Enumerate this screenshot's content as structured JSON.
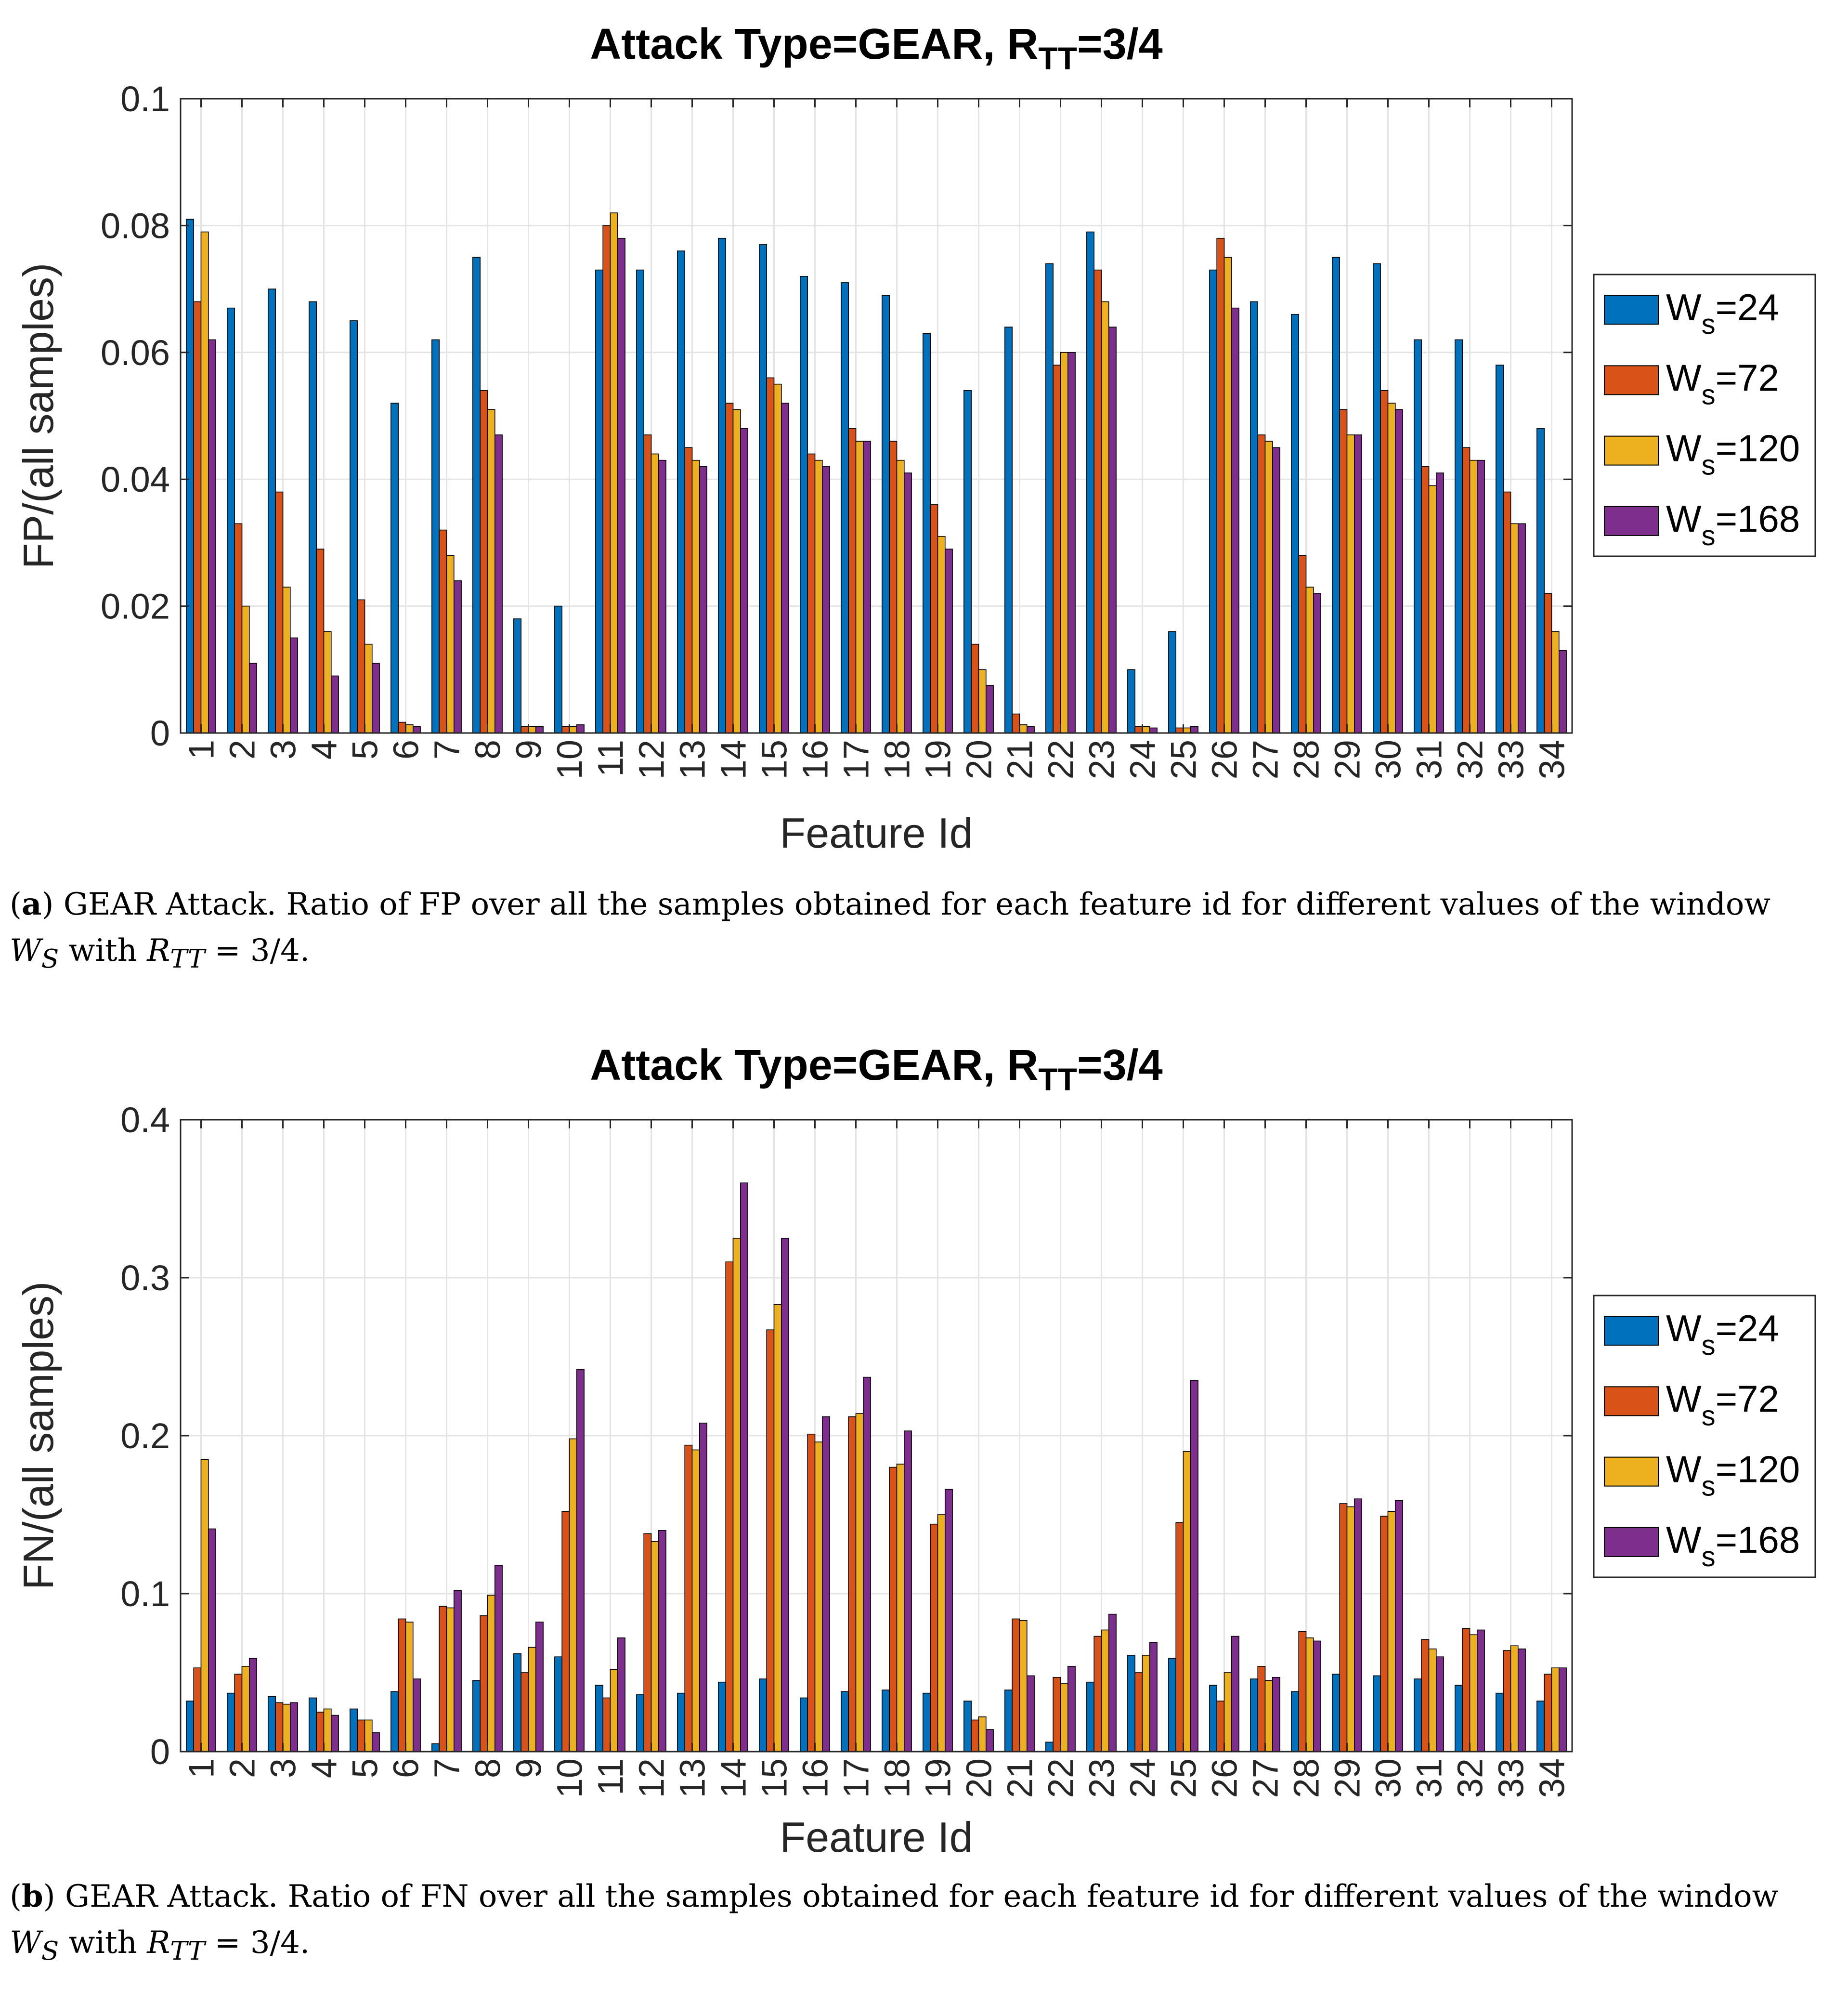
{
  "colors": {
    "series": [
      "#0072BD",
      "#D95319",
      "#EDB120",
      "#7E2F8E"
    ],
    "grid": "#e4e4e4",
    "axis": "#262626",
    "bar_edge": "#000000"
  },
  "legend_labels": [
    {
      "base": "W",
      "sub": "s",
      "rest": "=24"
    },
    {
      "base": "W",
      "sub": "s",
      "rest": "=72"
    },
    {
      "base": "W",
      "sub": "s",
      "rest": "=120"
    },
    {
      "base": "W",
      "sub": "s",
      "rest": "=168"
    }
  ],
  "chart_data": [
    {
      "type": "bar",
      "title_main": "Attack Type=GEAR, R",
      "title_sub": "TT",
      "title_end": "=3/4",
      "xlabel": "Feature Id",
      "ylabel": "FP/(all samples)",
      "ylim": [
        0,
        0.1
      ],
      "yticks": [
        0,
        0.02,
        0.04,
        0.06,
        0.08,
        0.1
      ],
      "ytick_labels": [
        "0",
        "0.02",
        "0.04",
        "0.06",
        "0.08",
        "0.1"
      ],
      "grid": true,
      "legend_position": "right",
      "categories": [
        "1",
        "2",
        "3",
        "4",
        "5",
        "6",
        "7",
        "8",
        "9",
        "10",
        "11",
        "12",
        "13",
        "14",
        "15",
        "16",
        "17",
        "18",
        "19",
        "20",
        "21",
        "22",
        "23",
        "24",
        "25",
        "26",
        "27",
        "28",
        "29",
        "30",
        "31",
        "32",
        "33",
        "34"
      ],
      "series": [
        {
          "name": "Ws=24",
          "values": [
            0.081,
            0.067,
            0.07,
            0.068,
            0.065,
            0.052,
            0.062,
            0.075,
            0.018,
            0.02,
            0.073,
            0.073,
            0.076,
            0.078,
            0.077,
            0.072,
            0.071,
            0.069,
            0.063,
            0.054,
            0.064,
            0.074,
            0.079,
            0.01,
            0.016,
            0.073,
            0.068,
            0.066,
            0.075,
            0.074,
            0.062,
            0.062,
            0.058,
            0.048
          ]
        },
        {
          "name": "Ws=72",
          "values": [
            0.068,
            0.033,
            0.038,
            0.029,
            0.021,
            0.0017,
            0.032,
            0.054,
            0.001,
            0.001,
            0.08,
            0.047,
            0.045,
            0.052,
            0.056,
            0.044,
            0.048,
            0.046,
            0.036,
            0.014,
            0.003,
            0.058,
            0.073,
            0.001,
            0.0008,
            0.078,
            0.047,
            0.028,
            0.051,
            0.054,
            0.042,
            0.045,
            0.038,
            0.022
          ]
        },
        {
          "name": "Ws=120",
          "values": [
            0.079,
            0.02,
            0.023,
            0.016,
            0.014,
            0.0013,
            0.028,
            0.051,
            0.001,
            0.001,
            0.082,
            0.044,
            0.043,
            0.051,
            0.055,
            0.043,
            0.046,
            0.043,
            0.031,
            0.01,
            0.0013,
            0.06,
            0.068,
            0.001,
            0.0008,
            0.075,
            0.046,
            0.023,
            0.047,
            0.052,
            0.039,
            0.043,
            0.033,
            0.016
          ]
        },
        {
          "name": "Ws=168",
          "values": [
            0.062,
            0.011,
            0.015,
            0.009,
            0.011,
            0.001,
            0.024,
            0.047,
            0.001,
            0.0013,
            0.078,
            0.043,
            0.042,
            0.048,
            0.052,
            0.042,
            0.046,
            0.041,
            0.029,
            0.0075,
            0.001,
            0.06,
            0.064,
            0.0008,
            0.001,
            0.067,
            0.045,
            0.022,
            0.047,
            0.051,
            0.041,
            0.043,
            0.033,
            0.013
          ]
        }
      ]
    },
    {
      "type": "bar",
      "title_main": "Attack Type=GEAR, R",
      "title_sub": "TT",
      "title_end": "=3/4",
      "xlabel": "Feature Id",
      "ylabel": "FN/(all samples)",
      "ylim": [
        0,
        0.4
      ],
      "yticks": [
        0,
        0.1,
        0.2,
        0.3,
        0.4
      ],
      "ytick_labels": [
        "0",
        "0.1",
        "0.2",
        "0.3",
        "0.4"
      ],
      "grid": true,
      "legend_position": "right",
      "categories": [
        "1",
        "2",
        "3",
        "4",
        "5",
        "6",
        "7",
        "8",
        "9",
        "10",
        "11",
        "12",
        "13",
        "14",
        "15",
        "16",
        "17",
        "18",
        "19",
        "20",
        "21",
        "22",
        "23",
        "24",
        "25",
        "26",
        "27",
        "28",
        "29",
        "30",
        "31",
        "32",
        "33",
        "34"
      ],
      "series": [
        {
          "name": "Ws=24",
          "values": [
            0.032,
            0.037,
            0.035,
            0.034,
            0.027,
            0.038,
            0.005,
            0.045,
            0.062,
            0.06,
            0.042,
            0.036,
            0.037,
            0.044,
            0.046,
            0.034,
            0.038,
            0.039,
            0.037,
            0.032,
            0.039,
            0.006,
            0.044,
            0.061,
            0.059,
            0.042,
            0.046,
            0.038,
            0.049,
            0.048,
            0.046,
            0.042,
            0.037,
            0.032
          ]
        },
        {
          "name": "Ws=72",
          "values": [
            0.053,
            0.049,
            0.031,
            0.025,
            0.02,
            0.084,
            0.092,
            0.086,
            0.05,
            0.152,
            0.034,
            0.138,
            0.194,
            0.31,
            0.267,
            0.201,
            0.212,
            0.18,
            0.144,
            0.02,
            0.084,
            0.047,
            0.073,
            0.05,
            0.145,
            0.032,
            0.054,
            0.076,
            0.157,
            0.149,
            0.071,
            0.078,
            0.064,
            0.049
          ]
        },
        {
          "name": "Ws=120",
          "values": [
            0.185,
            0.054,
            0.03,
            0.027,
            0.02,
            0.082,
            0.091,
            0.099,
            0.066,
            0.198,
            0.052,
            0.133,
            0.191,
            0.325,
            0.283,
            0.196,
            0.214,
            0.182,
            0.15,
            0.022,
            0.083,
            0.043,
            0.077,
            0.061,
            0.19,
            0.05,
            0.045,
            0.072,
            0.155,
            0.152,
            0.065,
            0.074,
            0.067,
            0.053
          ]
        },
        {
          "name": "Ws=168",
          "values": [
            0.141,
            0.059,
            0.031,
            0.023,
            0.012,
            0.046,
            0.102,
            0.118,
            0.082,
            0.242,
            0.072,
            0.14,
            0.208,
            0.36,
            0.325,
            0.212,
            0.237,
            0.203,
            0.166,
            0.014,
            0.048,
            0.054,
            0.087,
            0.069,
            0.235,
            0.073,
            0.047,
            0.07,
            0.16,
            0.159,
            0.06,
            0.077,
            0.065,
            0.053
          ]
        }
      ]
    }
  ],
  "captions": [
    {
      "label": "a",
      "line1": "GEAR Attack. Ratio of FP over all the samples obtained for each feature id for different values of the window",
      "var_base": "W",
      "var_sub": "S",
      "with_text": " with ",
      "rtt_base": "R",
      "rtt_sub": "TT",
      "rtt_value": " = 3/4."
    },
    {
      "label": "b",
      "line1": "GEAR Attack. Ratio of FN over all the samples obtained for each feature id for different values of the window",
      "var_base": "W",
      "var_sub": "S",
      "with_text": " with ",
      "rtt_base": "R",
      "rtt_sub": "TT",
      "rtt_value": " = 3/4."
    }
  ]
}
